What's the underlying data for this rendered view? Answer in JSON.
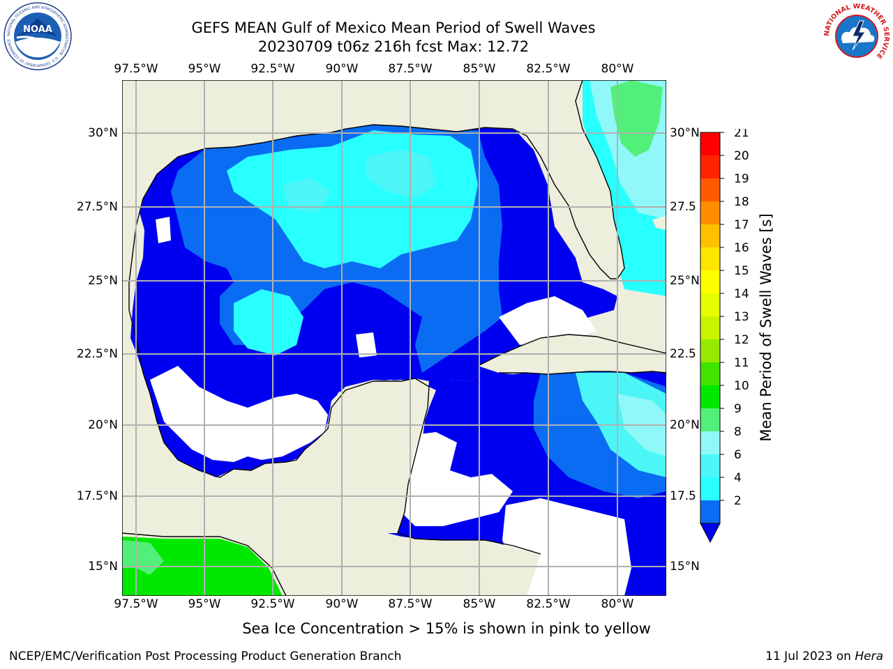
{
  "header": {
    "title_line1": "GEFS MEAN Gulf of Mexico Mean Period of Swell Waves",
    "title_line2": "20230709 t06z 216h fcst   Max: 12.72"
  },
  "map": {
    "lon_labels": [
      "97.5°W",
      "95°W",
      "92.5°W",
      "90°W",
      "87.5°W",
      "85°W",
      "82.5°W",
      "80°W"
    ],
    "lat_labels_left": [
      "30°N",
      "27.5°N",
      "25°N",
      "22.5°N",
      "20°N",
      "17.5°N",
      "15°N"
    ],
    "lat_labels_right": [
      "30°N",
      "27.5",
      "25°N",
      "22.5",
      "20°N",
      "17.5",
      "15°N"
    ],
    "colors": {
      "land": "#eeeedd",
      "grid": "#b0b0b0",
      "coast": "#000000",
      "no_data": "#ffffff"
    }
  },
  "colorbar": {
    "label": "Mean Period of Swell Waves [s]",
    "ticks": [
      "2",
      "4",
      "6",
      "8",
      "9",
      "10",
      "11",
      "12",
      "13",
      "14",
      "15",
      "16",
      "17",
      "18",
      "19",
      "20",
      "21"
    ],
    "colors": [
      "#0a6cf2",
      "#28ffff",
      "#4cf6f6",
      "#90f8f8",
      "#52f07a",
      "#00e800",
      "#40e400",
      "#96ea00",
      "#c8f400",
      "#e6ff00",
      "#ffff00",
      "#ffe600",
      "#ffc000",
      "#ff8c00",
      "#ff5a00",
      "#ff2400",
      "#ff0000"
    ],
    "extend_color": "#0000f0"
  },
  "footer": {
    "note": "Sea Ice Concentration > 15% is shown in pink to yellow",
    "credit": "NCEP/EMC/Verification Post Processing Product Generation Branch",
    "date": "11 Jul 2023 on",
    "machine": "Hera"
  },
  "logos": {
    "noaa": "NOAA",
    "noaa_ring": "NATIONAL OCEANIC AND ATMOSPHERIC ADMINISTRATION · U.S. DEPARTMENT OF COMMERCE",
    "nws_ring": "NATIONAL WEATHER SERVICE"
  }
}
